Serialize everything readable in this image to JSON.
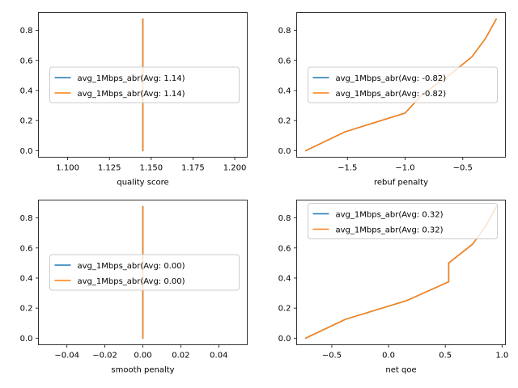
{
  "chart_data": [
    {
      "type": "line",
      "xlabel": "quality score",
      "xlim": [
        1.0825,
        1.2075
      ],
      "ylim": [
        -0.044,
        0.919
      ],
      "xticks": [
        1.1,
        1.125,
        1.15,
        1.175,
        1.2
      ],
      "xtick_labels": [
        "1.100",
        "1.125",
        "1.150",
        "1.175",
        "1.200"
      ],
      "yticks": [
        0.0,
        0.2,
        0.4,
        0.6,
        0.8
      ],
      "ytick_labels": [
        "0.0",
        "0.2",
        "0.4",
        "0.6",
        "0.8"
      ],
      "legend_loc": "center-left",
      "series": [
        {
          "name": "avg_1Mbps_abr(Avg: 1.14)",
          "color": "#1f77b4",
          "x": [
            1.145,
            1.145
          ],
          "y": [
            0.0,
            0.875
          ]
        },
        {
          "name": "avg_1Mbps_abr(Avg: 1.14)",
          "color": "#ff7f0e",
          "x": [
            1.145,
            1.145
          ],
          "y": [
            0.0,
            0.875
          ]
        }
      ]
    },
    {
      "type": "line",
      "xlabel": "rebuf penalty",
      "xlim": [
        -1.94,
        -0.13
      ],
      "ylim": [
        -0.044,
        0.919
      ],
      "xticks": [
        -1.5,
        -1.0,
        -0.5
      ],
      "xtick_labels": [
        "−1.5",
        "−1.0",
        "−0.5"
      ],
      "yticks": [
        0.0,
        0.2,
        0.4,
        0.6,
        0.8
      ],
      "ytick_labels": [
        "0.0",
        "0.2",
        "0.4",
        "0.6",
        "0.8"
      ],
      "legend_loc": "center-left",
      "series": [
        {
          "name": "avg_1Mbps_abr(Avg: -0.82)",
          "color": "#1f77b4",
          "x": [
            -1.86,
            -1.52,
            -1.0,
            -0.85,
            -0.62,
            -0.42,
            -0.3,
            -0.21
          ],
          "y": [
            0.0,
            0.125,
            0.25,
            0.375,
            0.5,
            0.625,
            0.75,
            0.875
          ]
        },
        {
          "name": "avg_1Mbps_abr(Avg: -0.82)",
          "color": "#ff7f0e",
          "x": [
            -1.86,
            -1.52,
            -1.0,
            -0.85,
            -0.62,
            -0.42,
            -0.3,
            -0.21
          ],
          "y": [
            0.0,
            0.125,
            0.25,
            0.375,
            0.5,
            0.625,
            0.75,
            0.875
          ]
        }
      ]
    },
    {
      "type": "line",
      "xlabel": "smooth penalty",
      "xlim": [
        -0.055,
        0.055
      ],
      "ylim": [
        -0.044,
        0.919
      ],
      "xticks": [
        -0.04,
        -0.02,
        0.0,
        0.02,
        0.04
      ],
      "xtick_labels": [
        "−0.04",
        "−0.02",
        "0.00",
        "0.02",
        "0.04"
      ],
      "yticks": [
        0.0,
        0.2,
        0.4,
        0.6,
        0.8
      ],
      "ytick_labels": [
        "0.0",
        "0.2",
        "0.4",
        "0.6",
        "0.8"
      ],
      "legend_loc": "center-left",
      "series": [
        {
          "name": "avg_1Mbps_abr(Avg: 0.00)",
          "color": "#1f77b4",
          "x": [
            0.0,
            0.0
          ],
          "y": [
            0.0,
            0.875
          ]
        },
        {
          "name": "avg_1Mbps_abr(Avg: 0.00)",
          "color": "#ff7f0e",
          "x": [
            0.0,
            0.0
          ],
          "y": [
            0.0,
            0.875
          ]
        }
      ]
    },
    {
      "type": "line",
      "xlabel": "net qoe",
      "xlim": [
        -0.81,
        1.03
      ],
      "ylim": [
        -0.044,
        0.919
      ],
      "xticks": [
        -0.5,
        0.0,
        0.5,
        1.0
      ],
      "xtick_labels": [
        "−0.5",
        "0.0",
        "0.5",
        "1.0"
      ],
      "yticks": [
        0.0,
        0.2,
        0.4,
        0.6,
        0.8
      ],
      "ytick_labels": [
        "0.0",
        "0.2",
        "0.4",
        "0.6",
        "0.8"
      ],
      "legend_loc": "upper-left",
      "series": [
        {
          "name": "avg_1Mbps_abr(Avg: 0.32)",
          "color": "#1f77b4",
          "x": [
            -0.73,
            -0.38,
            0.16,
            0.53,
            0.53,
            0.74,
            0.86,
            0.95
          ],
          "y": [
            0.0,
            0.125,
            0.25,
            0.375,
            0.5,
            0.625,
            0.75,
            0.875
          ]
        },
        {
          "name": "avg_1Mbps_abr(Avg: 0.32)",
          "color": "#ff7f0e",
          "x": [
            -0.73,
            -0.38,
            0.16,
            0.53,
            0.53,
            0.74,
            0.86,
            0.95
          ],
          "y": [
            0.0,
            0.125,
            0.25,
            0.375,
            0.5,
            0.625,
            0.75,
            0.875
          ]
        }
      ]
    }
  ]
}
